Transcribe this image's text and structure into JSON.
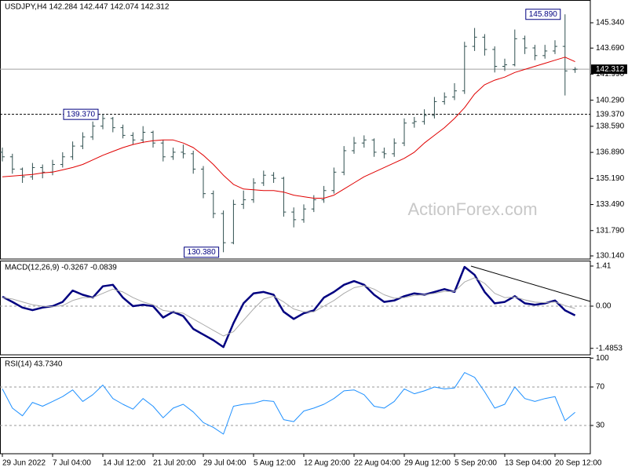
{
  "chart_data": [
    {
      "type": "ohlc",
      "title": "USDJPY,H4 142.284 142.447 142.074 142.312",
      "watermark": "ActionForex.com",
      "color": "#2f4f4f",
      "open": [
        136.9,
        136.6,
        135.8,
        135.3,
        135.9,
        135.6,
        136.1,
        136.6,
        137.3,
        137.9,
        138.6,
        139.1,
        138.5,
        138.0,
        137.7,
        138.2,
        137.5,
        136.6,
        136.9,
        136.8,
        135.8,
        134.2,
        132.9,
        131.0,
        133.5,
        133.8,
        134.9,
        135.4,
        135.2,
        133.0,
        132.5,
        133.2,
        133.8,
        134.4,
        135.6,
        137.0,
        137.5,
        137.7,
        136.9,
        136.8,
        137.5,
        138.8,
        138.9,
        139.3,
        140.2,
        140.5,
        140.9,
        143.8,
        144.4,
        143.6,
        142.5,
        142.6,
        144.3,
        143.7,
        143.2,
        143.5,
        143.8,
        142.284
      ],
      "high": [
        137.2,
        136.8,
        135.9,
        136.2,
        136.1,
        136.4,
        136.9,
        137.6,
        138.2,
        138.9,
        139.37,
        139.2,
        138.7,
        138.2,
        138.6,
        138.3,
        137.7,
        137.2,
        137.4,
        137.0,
        136.0,
        134.4,
        133.1,
        133.8,
        134.4,
        135.2,
        135.7,
        135.6,
        135.3,
        133.3,
        133.5,
        134.1,
        134.7,
        135.9,
        137.3,
        137.9,
        138.0,
        137.8,
        137.2,
        137.8,
        139.1,
        139.2,
        139.7,
        140.5,
        140.8,
        141.4,
        144.1,
        145.0,
        144.6,
        143.8,
        143.0,
        144.9,
        144.5,
        143.9,
        143.9,
        144.2,
        145.89,
        142.447
      ],
      "low": [
        136.3,
        135.5,
        134.9,
        135.1,
        135.2,
        135.4,
        135.9,
        136.4,
        137.1,
        137.7,
        138.4,
        138.2,
        137.8,
        137.4,
        137.5,
        137.2,
        136.3,
        136.4,
        136.5,
        135.5,
        133.9,
        132.6,
        130.38,
        130.9,
        133.2,
        133.6,
        134.7,
        134.9,
        132.7,
        132.0,
        132.3,
        133.0,
        133.6,
        134.2,
        135.4,
        136.8,
        137.2,
        136.6,
        136.5,
        136.6,
        137.3,
        138.5,
        138.7,
        139.1,
        140.0,
        140.3,
        140.7,
        143.5,
        143.2,
        142.1,
        142.2,
        142.5,
        143.3,
        142.9,
        143.0,
        143.3,
        140.6,
        142.074
      ],
      "close": [
        136.6,
        135.8,
        135.3,
        135.9,
        135.6,
        136.1,
        136.6,
        137.3,
        137.9,
        138.6,
        139.1,
        138.5,
        138.0,
        137.7,
        138.2,
        137.5,
        136.6,
        136.9,
        136.8,
        135.8,
        134.2,
        132.9,
        131.0,
        133.5,
        133.8,
        134.9,
        135.4,
        135.2,
        133.0,
        132.5,
        133.2,
        133.8,
        134.4,
        135.6,
        137.0,
        137.5,
        137.7,
        136.9,
        136.8,
        137.5,
        138.8,
        138.9,
        139.3,
        140.2,
        140.5,
        140.9,
        143.8,
        144.4,
        143.6,
        142.5,
        142.6,
        144.3,
        143.7,
        143.2,
        143.5,
        143.8,
        142.2,
        142.312
      ],
      "series": [
        {
          "color": "#e00000",
          "values": [
            135.3,
            135.35,
            135.4,
            135.45,
            135.55,
            135.6,
            135.75,
            135.9,
            136.1,
            136.4,
            136.7,
            136.95,
            137.2,
            137.4,
            137.55,
            137.65,
            137.7,
            137.7,
            137.5,
            137.2,
            136.7,
            136.1,
            135.4,
            134.8,
            134.5,
            134.45,
            134.4,
            134.4,
            134.3,
            134.1,
            134.0,
            133.9,
            133.9,
            134.1,
            134.5,
            134.9,
            135.3,
            135.6,
            135.9,
            136.2,
            136.5,
            136.9,
            137.5,
            138.0,
            138.5,
            139.1,
            139.8,
            140.7,
            141.3,
            141.6,
            141.8,
            142.1,
            142.3,
            142.5,
            142.7,
            142.9,
            143.1,
            142.8
          ]
        }
      ],
      "ylim": [
        129.935,
        146.824
      ],
      "yticks": [
        {
          "value": 145.34,
          "label": "145.340"
        },
        {
          "value": 143.69,
          "label": "143.690"
        },
        {
          "value": 141.99,
          "label": "141.990"
        },
        {
          "value": 140.29,
          "label": "140.290"
        },
        {
          "value": 138.59,
          "label": "138.590"
        },
        {
          "value": 136.89,
          "label": "136.890"
        },
        {
          "value": 135.19,
          "label": "135.190"
        },
        {
          "value": 133.49,
          "label": "133.490"
        },
        {
          "value": 131.79,
          "label": "131.790"
        },
        {
          "value": 130.14,
          "label": "130.140"
        }
      ],
      "hlines": [
        {
          "value": 139.37,
          "label": "139.370",
          "style": "dashed"
        },
        {
          "value": 142.312,
          "label": "142.312",
          "style": "solid"
        }
      ],
      "annotations": [
        {
          "value": 145.89,
          "label": "145.890"
        },
        {
          "value": 139.37,
          "label": "139.370"
        },
        {
          "value": 130.38,
          "label": "130.380"
        }
      ]
    },
    {
      "type": "line",
      "title": "MACD(12,26,9) -0.3267 -0.0839",
      "series": [
        {
          "color": "#000080",
          "width": 2.5,
          "values": [
            0.33,
            0.15,
            -0.05,
            -0.14,
            -0.05,
            0.0,
            0.15,
            0.55,
            0.4,
            0.3,
            0.7,
            0.75,
            0.3,
            0.0,
            0.05,
            0.0,
            -0.4,
            -0.2,
            -0.35,
            -0.8,
            -1.0,
            -1.2,
            -1.44,
            -0.6,
            0.1,
            0.45,
            0.5,
            0.4,
            -0.2,
            -0.45,
            -0.25,
            -0.15,
            0.3,
            0.5,
            0.75,
            0.88,
            0.75,
            0.4,
            0.15,
            0.2,
            0.35,
            0.45,
            0.4,
            0.5,
            0.6,
            0.5,
            1.38,
            1.1,
            0.5,
            0.1,
            0.15,
            0.35,
            0.1,
            0.05,
            0.1,
            0.2,
            -0.15,
            -0.3267
          ]
        },
        {
          "color": "#a9a9a9",
          "width": 1,
          "values": [
            0.3,
            0.25,
            0.15,
            0.05,
            0.0,
            -0.02,
            0.02,
            0.2,
            0.3,
            0.3,
            0.45,
            0.6,
            0.5,
            0.3,
            0.15,
            0.05,
            -0.15,
            -0.2,
            -0.25,
            -0.45,
            -0.65,
            -0.85,
            -1.05,
            -0.9,
            -0.5,
            -0.1,
            0.25,
            0.35,
            0.15,
            -0.1,
            -0.2,
            -0.2,
            0.0,
            0.2,
            0.45,
            0.65,
            0.72,
            0.6,
            0.4,
            0.28,
            0.3,
            0.38,
            0.4,
            0.45,
            0.52,
            0.52,
            0.85,
            1.0,
            0.8,
            0.45,
            0.3,
            0.32,
            0.22,
            0.14,
            0.12,
            0.15,
            0.02,
            -0.0839
          ]
        }
      ],
      "ylim": [
        -1.713,
        1.602
      ],
      "yticks": [
        1.41,
        {
          "value": 0,
          "label": "0.00"
        },
        -1.4853
      ],
      "levels": [
        0
      ]
    },
    {
      "type": "line",
      "title": "RSI(14) 43.7340",
      "series": [
        {
          "color": "#1e90ff",
          "width": 1,
          "values": [
            68,
            48,
            40,
            54,
            50,
            55,
            60,
            67,
            55,
            62,
            72,
            58,
            52,
            47,
            58,
            50,
            38,
            48,
            52,
            44,
            33,
            28,
            21,
            50,
            52,
            53,
            56,
            55,
            36,
            34,
            45,
            48,
            52,
            58,
            66,
            67,
            62,
            50,
            48,
            55,
            68,
            63,
            66,
            70,
            68,
            69,
            85,
            80,
            65,
            48,
            52,
            70,
            58,
            55,
            58,
            60,
            35,
            43.734
          ]
        }
      ],
      "ylim": [
        0.6,
        101
      ],
      "yticks": [
        100,
        70,
        30
      ],
      "levels": [
        70,
        30
      ],
      "categories": [
        "29 Jun 2022",
        null,
        null,
        null,
        null,
        "7 Jul 04:00",
        null,
        null,
        null,
        null,
        "14 Jul 12:00",
        null,
        null,
        null,
        null,
        "21 Jul 20:00",
        null,
        null,
        null,
        null,
        "29 Jul 04:00",
        null,
        null,
        null,
        null,
        "5 Aug 12:00",
        null,
        null,
        null,
        null,
        "12 Aug 20:00",
        null,
        null,
        null,
        null,
        "22 Aug 04:00",
        null,
        null,
        null,
        null,
        "29 Aug 12:00",
        null,
        null,
        null,
        null,
        "5 Sep 20:00",
        null,
        null,
        null,
        null,
        "13 Sep 04:00",
        null,
        null,
        null,
        null,
        "20 Sep 12:00",
        null,
        null
      ]
    }
  ]
}
